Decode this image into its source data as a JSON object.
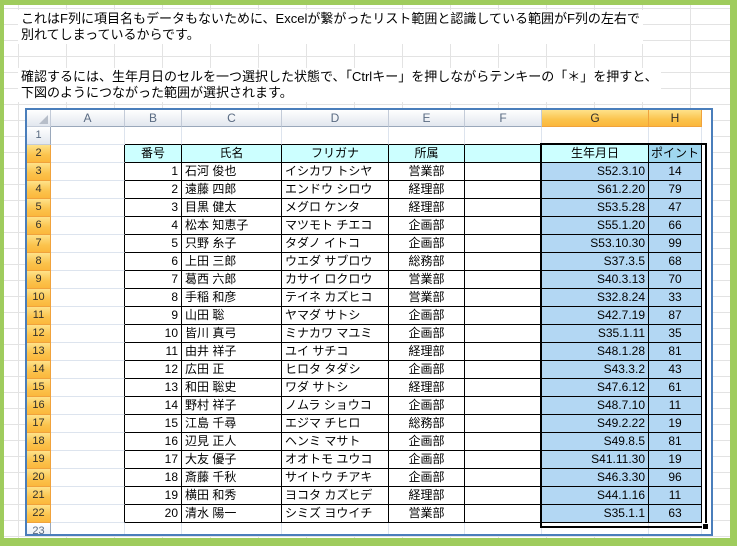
{
  "page": {
    "paragraph1_line1": "これはF列に項目名もデータもないために、Excelが繋がったリスト範囲と認識している範囲がF列の左右で",
    "paragraph1_line2": "別れてしまっているからです。",
    "paragraph2_line1": "確認するには、生年月日のセルを一つ選択した状態で、「Ctrlキー」を押しながらテンキーの「＊」を押すと、",
    "paragraph2_line2": "下図のようにつながった範囲が選択されます。"
  },
  "spreadsheet": {
    "column_headers": [
      "A",
      "B",
      "C",
      "D",
      "E",
      "F",
      "G",
      "H"
    ],
    "selected_column_headers": [
      "G",
      "H"
    ],
    "row_headers": [
      1,
      2,
      3,
      4,
      5,
      6,
      7,
      8,
      9,
      10,
      11,
      12,
      13,
      14,
      15,
      16,
      17,
      18,
      19,
      20,
      21,
      22,
      23
    ],
    "selected_rows_from": 2,
    "selected_rows_to": 22,
    "selection_range": "G2:H22",
    "active_cell": "G2",
    "table": {
      "start_cell": "B2",
      "columns": [
        {
          "letter": "B",
          "header": "番号",
          "align": "right"
        },
        {
          "letter": "C",
          "header": "氏名",
          "align": "left"
        },
        {
          "letter": "D",
          "header": "フリガナ",
          "align": "left"
        },
        {
          "letter": "E",
          "header": "所属",
          "align": "center"
        },
        {
          "letter": "F",
          "header": "",
          "align": "center"
        },
        {
          "letter": "G",
          "header": "生年月日",
          "align": "right"
        },
        {
          "letter": "H",
          "header": "ポイント",
          "align": "center"
        }
      ],
      "rows": [
        {
          "no": "1",
          "name": "石河 俊也",
          "kana": "イシカワ トシヤ",
          "dept": "営業部",
          "f": "",
          "birth": "S52.3.10",
          "points": "14"
        },
        {
          "no": "2",
          "name": "遠藤 四郎",
          "kana": "エンドウ シロウ",
          "dept": "経理部",
          "f": "",
          "birth": "S61.2.20",
          "points": "79"
        },
        {
          "no": "3",
          "name": "目黒 健太",
          "kana": "メグロ ケンタ",
          "dept": "経理部",
          "f": "",
          "birth": "S53.5.28",
          "points": "47"
        },
        {
          "no": "4",
          "name": "松本 知恵子",
          "kana": "マツモト チエコ",
          "dept": "企画部",
          "f": "",
          "birth": "S55.1.20",
          "points": "66"
        },
        {
          "no": "5",
          "name": "只野 糸子",
          "kana": "タダノ イトコ",
          "dept": "企画部",
          "f": "",
          "birth": "S53.10.30",
          "points": "99"
        },
        {
          "no": "6",
          "name": "上田 三郎",
          "kana": "ウエダ サブロウ",
          "dept": "総務部",
          "f": "",
          "birth": "S37.3.5",
          "points": "68"
        },
        {
          "no": "7",
          "name": "葛西 六郎",
          "kana": "カサイ ロクロウ",
          "dept": "営業部",
          "f": "",
          "birth": "S40.3.13",
          "points": "70"
        },
        {
          "no": "8",
          "name": "手稲 和彦",
          "kana": "テイネ カズヒコ",
          "dept": "営業部",
          "f": "",
          "birth": "S32.8.24",
          "points": "33"
        },
        {
          "no": "9",
          "name": "山田 聡",
          "kana": "ヤマダ サトシ",
          "dept": "企画部",
          "f": "",
          "birth": "S42.7.19",
          "points": "87"
        },
        {
          "no": "10",
          "name": "皆川 真弓",
          "kana": "ミナカワ マユミ",
          "dept": "企画部",
          "f": "",
          "birth": "S35.1.11",
          "points": "35"
        },
        {
          "no": "11",
          "name": "由井 祥子",
          "kana": "ユイ サチコ",
          "dept": "経理部",
          "f": "",
          "birth": "S48.1.28",
          "points": "81"
        },
        {
          "no": "12",
          "name": "広田 正",
          "kana": "ヒロタ タダシ",
          "dept": "企画部",
          "f": "",
          "birth": "S43.3.2",
          "points": "43"
        },
        {
          "no": "13",
          "name": "和田 聡史",
          "kana": "ワダ サトシ",
          "dept": "経理部",
          "f": "",
          "birth": "S47.6.12",
          "points": "61"
        },
        {
          "no": "14",
          "name": "野村 祥子",
          "kana": "ノムラ ショウコ",
          "dept": "企画部",
          "f": "",
          "birth": "S48.7.10",
          "points": "11"
        },
        {
          "no": "15",
          "name": "江島 千尋",
          "kana": "エジマ チヒロ",
          "dept": "総務部",
          "f": "",
          "birth": "S49.2.22",
          "points": "19"
        },
        {
          "no": "16",
          "name": "辺見 正人",
          "kana": "ヘンミ マサト",
          "dept": "企画部",
          "f": "",
          "birth": "S49.8.5",
          "points": "81"
        },
        {
          "no": "17",
          "name": "大友 優子",
          "kana": "オオトモ ユウコ",
          "dept": "企画部",
          "f": "",
          "birth": "S41.11.30",
          "points": "19"
        },
        {
          "no": "18",
          "name": "斎藤 千秋",
          "kana": "サイトウ チアキ",
          "dept": "企画部",
          "f": "",
          "birth": "S46.3.30",
          "points": "96"
        },
        {
          "no": "19",
          "name": "横田 和秀",
          "kana": "ヨコタ カズヒデ",
          "dept": "経理部",
          "f": "",
          "birth": "S44.1.16",
          "points": "11"
        },
        {
          "no": "20",
          "name": "清水 陽一",
          "kana": "シミズ ヨウイチ",
          "dept": "営業部",
          "f": "",
          "birth": "S35.1.1",
          "points": "63"
        }
      ]
    },
    "colors": {
      "frame-green": "#9fcc5d",
      "capture-border": "#4a7ebb",
      "grid-line-outer": "#e3e3e3",
      "grid-line-inner": "#dde4ee",
      "header-cyan": "#ccffff",
      "selection-fill": "#b3d7f3",
      "selection-fill-header": "#a0d7ef",
      "header-orange": "#fbc34c",
      "header-orange-light": "#fee28a",
      "header-orange-border": "#f0a23c",
      "header-gray-light": "#ffffff",
      "header-gray": "#e2e7ef",
      "header-border-gray": "#c3cbd8",
      "cell-border-black": "#000000",
      "selection-border": "#000000"
    }
  }
}
